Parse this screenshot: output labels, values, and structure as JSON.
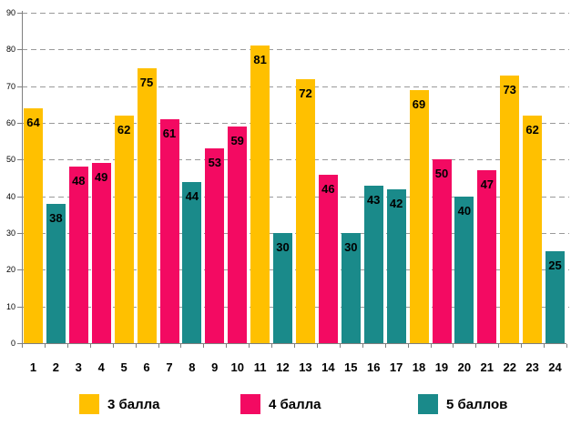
{
  "chart_data": {
    "type": "bar",
    "title": "",
    "categories": [
      "1",
      "2",
      "3",
      "4",
      "5",
      "6",
      "7",
      "8",
      "9",
      "10",
      "11",
      "12",
      "13",
      "14",
      "15",
      "16",
      "17",
      "18",
      "19",
      "20",
      "21",
      "22",
      "23",
      "24"
    ],
    "values": [
      64,
      38,
      48,
      49,
      62,
      75,
      61,
      44,
      53,
      59,
      81,
      30,
      72,
      46,
      30,
      43,
      42,
      69,
      50,
      40,
      47,
      73,
      62,
      25
    ],
    "bar_series": [
      "3 балла",
      "5 баллов",
      "4 балла",
      "4 балла",
      "3 балла",
      "3 балла",
      "4 балла",
      "5 баллов",
      "4 балла",
      "4 балла",
      "3 балла",
      "5 баллов",
      "3 балла",
      "4 балла",
      "5 баллов",
      "5 баллов",
      "5 баллов",
      "3 балла",
      "4 балла",
      "5 баллов",
      "4 балла",
      "3 балла",
      "3 балла",
      "5 баллов"
    ],
    "series_legend": [
      {
        "name": "3 балла",
        "color": "#FFC000"
      },
      {
        "name": "4 балла",
        "color": "#F30A62"
      },
      {
        "name": "5 баллов",
        "color": "#1A8A8A"
      }
    ],
    "ylim": [
      0,
      90
    ],
    "yticks": [
      0,
      10,
      20,
      30,
      40,
      50,
      60,
      70,
      80,
      90
    ],
    "value_labels_shown": true,
    "grid": "horizontal-dashed",
    "legend_position": "bottom"
  },
  "colors": {
    "background": "#FFFFFF",
    "axis": "#7F7F7F",
    "gridline": "#9A9A9A",
    "value_label": "#000000"
  }
}
